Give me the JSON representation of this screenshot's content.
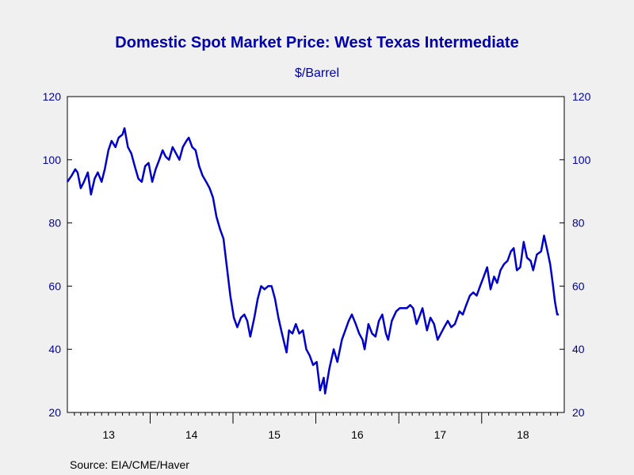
{
  "chart_data": {
    "type": "line",
    "title": "Domestic Spot Market Price: West Texas Intermediate",
    "subtitle": "$/Barrel",
    "source": "Source:  EIA/CME/Haver",
    "xlabel": "",
    "ylabel": "",
    "x_range": [
      "2013-01-01",
      "2018-12-31"
    ],
    "ylim": [
      20,
      120
    ],
    "y_ticks": [
      20,
      40,
      60,
      80,
      100,
      120
    ],
    "x_tick_labels": [
      {
        "label": "13",
        "year": 2013
      },
      {
        "label": "14",
        "year": 2014
      },
      {
        "label": "15",
        "year": 2015
      },
      {
        "label": "16",
        "year": 2016
      },
      {
        "label": "17",
        "year": 2017
      },
      {
        "label": "18",
        "year": 2018
      }
    ],
    "grid": false,
    "legend": "none",
    "series": [
      {
        "color": "#0000cc",
        "points": [
          [
            "2013-01-01",
            93
          ],
          [
            "2013-01-20",
            95
          ],
          [
            "2013-02-05",
            97
          ],
          [
            "2013-02-15",
            96
          ],
          [
            "2013-03-01",
            91
          ],
          [
            "2013-03-15",
            93
          ],
          [
            "2013-04-01",
            96
          ],
          [
            "2013-04-15",
            89
          ],
          [
            "2013-05-01",
            94
          ],
          [
            "2013-05-15",
            96
          ],
          [
            "2013-06-01",
            93
          ],
          [
            "2013-06-15",
            97
          ],
          [
            "2013-07-01",
            103
          ],
          [
            "2013-07-15",
            106
          ],
          [
            "2013-08-01",
            104
          ],
          [
            "2013-08-15",
            107
          ],
          [
            "2013-09-01",
            108
          ],
          [
            "2013-09-10",
            110
          ],
          [
            "2013-09-25",
            104
          ],
          [
            "2013-10-10",
            102
          ],
          [
            "2013-10-25",
            98
          ],
          [
            "2013-11-10",
            94
          ],
          [
            "2013-11-25",
            93
          ],
          [
            "2013-12-10",
            98
          ],
          [
            "2013-12-25",
            99
          ],
          [
            "2014-01-10",
            93
          ],
          [
            "2014-01-25",
            97
          ],
          [
            "2014-02-10",
            100
          ],
          [
            "2014-02-25",
            103
          ],
          [
            "2014-03-10",
            101
          ],
          [
            "2014-03-25",
            100
          ],
          [
            "2014-04-10",
            104
          ],
          [
            "2014-04-25",
            102
          ],
          [
            "2014-05-10",
            100
          ],
          [
            "2014-05-25",
            104
          ],
          [
            "2014-06-10",
            106
          ],
          [
            "2014-06-20",
            107
          ],
          [
            "2014-07-05",
            104
          ],
          [
            "2014-07-20",
            103
          ],
          [
            "2014-08-05",
            98
          ],
          [
            "2014-08-20",
            95
          ],
          [
            "2014-09-05",
            93
          ],
          [
            "2014-09-20",
            91
          ],
          [
            "2014-10-05",
            88
          ],
          [
            "2014-10-20",
            82
          ],
          [
            "2014-11-05",
            78
          ],
          [
            "2014-11-20",
            75
          ],
          [
            "2014-12-05",
            66
          ],
          [
            "2014-12-20",
            57
          ],
          [
            "2015-01-05",
            50
          ],
          [
            "2015-01-20",
            47
          ],
          [
            "2015-02-05",
            50
          ],
          [
            "2015-02-20",
            51
          ],
          [
            "2015-03-05",
            49
          ],
          [
            "2015-03-18",
            44
          ],
          [
            "2015-04-05",
            50
          ],
          [
            "2015-04-20",
            56
          ],
          [
            "2015-05-05",
            60
          ],
          [
            "2015-05-20",
            59
          ],
          [
            "2015-06-05",
            60
          ],
          [
            "2015-06-20",
            60
          ],
          [
            "2015-07-05",
            56
          ],
          [
            "2015-07-20",
            50
          ],
          [
            "2015-08-05",
            45
          ],
          [
            "2015-08-25",
            39
          ],
          [
            "2015-09-05",
            46
          ],
          [
            "2015-09-20",
            45
          ],
          [
            "2015-10-05",
            48
          ],
          [
            "2015-10-20",
            45
          ],
          [
            "2015-11-05",
            46
          ],
          [
            "2015-11-20",
            40
          ],
          [
            "2015-12-05",
            38
          ],
          [
            "2015-12-20",
            35
          ],
          [
            "2016-01-05",
            36
          ],
          [
            "2016-01-20",
            27
          ],
          [
            "2016-02-05",
            31
          ],
          [
            "2016-02-11",
            26
          ],
          [
            "2016-03-01",
            34
          ],
          [
            "2016-03-20",
            40
          ],
          [
            "2016-04-05",
            36
          ],
          [
            "2016-04-25",
            43
          ],
          [
            "2016-05-10",
            46
          ],
          [
            "2016-05-25",
            49
          ],
          [
            "2016-06-08",
            51
          ],
          [
            "2016-06-25",
            48
          ],
          [
            "2016-07-10",
            45
          ],
          [
            "2016-07-25",
            43
          ],
          [
            "2016-08-03",
            40
          ],
          [
            "2016-08-20",
            48
          ],
          [
            "2016-09-05",
            45
          ],
          [
            "2016-09-20",
            44
          ],
          [
            "2016-10-05",
            49
          ],
          [
            "2016-10-20",
            51
          ],
          [
            "2016-11-05",
            45
          ],
          [
            "2016-11-15",
            43
          ],
          [
            "2016-12-01",
            49
          ],
          [
            "2016-12-20",
            52
          ],
          [
            "2017-01-05",
            53
          ],
          [
            "2017-01-20",
            53
          ],
          [
            "2017-02-05",
            53
          ],
          [
            "2017-02-20",
            54
          ],
          [
            "2017-03-05",
            53
          ],
          [
            "2017-03-20",
            48
          ],
          [
            "2017-04-05",
            51
          ],
          [
            "2017-04-15",
            53
          ],
          [
            "2017-05-05",
            46
          ],
          [
            "2017-05-20",
            50
          ],
          [
            "2017-06-05",
            48
          ],
          [
            "2017-06-21",
            43
          ],
          [
            "2017-07-05",
            45
          ],
          [
            "2017-07-20",
            47
          ],
          [
            "2017-08-05",
            49
          ],
          [
            "2017-08-20",
            47
          ],
          [
            "2017-09-05",
            48
          ],
          [
            "2017-09-25",
            52
          ],
          [
            "2017-10-10",
            51
          ],
          [
            "2017-10-25",
            54
          ],
          [
            "2017-11-10",
            57
          ],
          [
            "2017-11-25",
            58
          ],
          [
            "2017-12-10",
            57
          ],
          [
            "2017-12-25",
            60
          ],
          [
            "2018-01-10",
            63
          ],
          [
            "2018-01-25",
            66
          ],
          [
            "2018-02-09",
            59
          ],
          [
            "2018-02-25",
            63
          ],
          [
            "2018-03-10",
            61
          ],
          [
            "2018-03-25",
            65
          ],
          [
            "2018-04-10",
            67
          ],
          [
            "2018-04-25",
            68
          ],
          [
            "2018-05-10",
            71
          ],
          [
            "2018-05-22",
            72
          ],
          [
            "2018-06-05",
            65
          ],
          [
            "2018-06-20",
            66
          ],
          [
            "2018-07-05",
            74
          ],
          [
            "2018-07-20",
            69
          ],
          [
            "2018-08-05",
            68
          ],
          [
            "2018-08-16",
            65
          ],
          [
            "2018-09-01",
            70
          ],
          [
            "2018-09-20",
            71
          ],
          [
            "2018-10-03",
            76
          ],
          [
            "2018-10-15",
            72
          ],
          [
            "2018-10-30",
            67
          ],
          [
            "2018-11-10",
            61
          ],
          [
            "2018-11-20",
            55
          ],
          [
            "2018-11-30",
            51
          ],
          [
            "2018-12-07",
            51
          ]
        ]
      }
    ],
    "colors": {
      "background": "#f0f0f0",
      "plot_area": "#ffffff",
      "text": "#0000aa",
      "axis": "#000000",
      "line": "#0000cc"
    }
  }
}
